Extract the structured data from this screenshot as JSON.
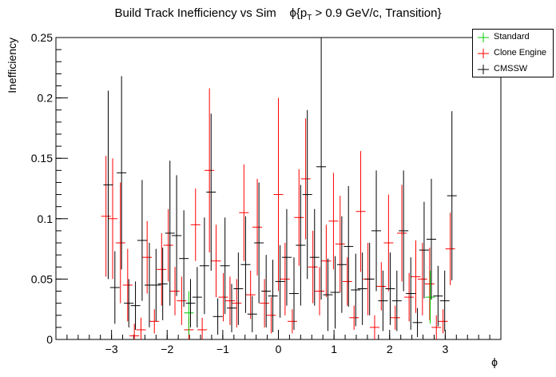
{
  "chart_data": {
    "type": "scatter",
    "title": "Build Track Inefficiency vs Sim    ϕ{p_T > 0.9 GeV/c, Transition}",
    "title_main": "Build Track Inefficiency vs Sim",
    "title_phi": "ϕ{p",
    "title_sub": "T",
    "title_rest": " > 0.9 GeV/c, Transition}",
    "xlabel": "ϕ",
    "ylabel": "Inefficiency",
    "xlim": [
      -4,
      4
    ],
    "ylim": [
      0,
      0.25
    ],
    "x_ticks": [
      -3,
      -2,
      -1,
      0,
      1,
      2,
      3
    ],
    "x_tick_labels": [
      "−3",
      "−2",
      "−1",
      "0",
      "1",
      "2",
      "3"
    ],
    "y_ticks": [
      0,
      0.05,
      0.1,
      0.15,
      0.2,
      0.25
    ],
    "y_tick_labels": [
      "0",
      "0.05",
      "0.1",
      "0.15",
      "0.2",
      "0.25"
    ],
    "grid": false,
    "legend_position": "top-right",
    "series": [
      {
        "name": "Standard",
        "color": "#00cc00",
        "x": [
          -1.61,
          2.73
        ],
        "y": [
          0.022,
          0.035
        ],
        "err": [
          0.018,
          0.022
        ]
      },
      {
        "name": "Clone Engine",
        "color": "#ff0000",
        "x": [
          -3.1,
          -2.98,
          -2.84,
          -2.71,
          -2.59,
          -2.47,
          -2.36,
          -2.23,
          -2.1,
          -1.98,
          -1.86,
          -1.74,
          -1.61,
          -1.49,
          -1.37,
          -1.24,
          -1.12,
          -0.99,
          -0.87,
          -0.75,
          -0.62,
          -0.5,
          -0.38,
          -0.25,
          -0.13,
          0.0,
          0.12,
          0.25,
          0.37,
          0.49,
          0.62,
          0.74,
          0.86,
          0.99,
          1.11,
          1.24,
          1.36,
          1.48,
          1.61,
          1.73,
          1.85,
          1.98,
          2.1,
          2.22,
          2.35,
          2.47,
          2.59,
          2.72,
          2.84,
          2.96,
          3.09
        ],
        "y": [
          0.102,
          0.1,
          0.08,
          0.045,
          0.003,
          0.008,
          0.068,
          0.015,
          0.058,
          0.078,
          0.04,
          0.032,
          0.008,
          0.095,
          0.008,
          0.14,
          0.065,
          0.035,
          0.032,
          0.03,
          0.105,
          0.037,
          0.093,
          0.03,
          0.02,
          0.12,
          0.05,
          0.015,
          0.101,
          0.133,
          0.06,
          0.04,
          0.065,
          0.098,
          0.079,
          0.048,
          0.018,
          0.106,
          0.05,
          0.01,
          0.044,
          0.08,
          0.018,
          0.088,
          0.035,
          0.052,
          0.05,
          0.046,
          0.01,
          0.015,
          0.075
        ],
        "err": [
          0.05,
          0.05,
          0.05,
          0.03,
          0.01,
          0.01,
          0.03,
          0.01,
          0.03,
          0.03,
          0.02,
          0.02,
          0.01,
          0.03,
          0.01,
          0.068,
          0.03,
          0.02,
          0.02,
          0.02,
          0.04,
          0.02,
          0.04,
          0.02,
          0.015,
          0.08,
          0.03,
          0.01,
          0.04,
          0.05,
          0.03,
          0.02,
          0.03,
          0.04,
          0.04,
          0.02,
          0.01,
          0.05,
          0.03,
          0.01,
          0.02,
          0.04,
          0.01,
          0.04,
          0.02,
          0.03,
          0.03,
          0.03,
          0.01,
          0.01,
          0.03
        ]
      },
      {
        "name": "CMSSW",
        "color": "#000000",
        "x": [
          -3.06,
          -2.94,
          -2.82,
          -2.69,
          -2.57,
          -2.45,
          -2.32,
          -2.2,
          -2.08,
          -1.95,
          -1.83,
          -1.7,
          -1.58,
          -1.46,
          -1.33,
          -1.21,
          -1.09,
          -0.96,
          -0.84,
          -0.72,
          -0.59,
          -0.47,
          -0.35,
          -0.22,
          -0.1,
          0.03,
          0.15,
          0.28,
          0.4,
          0.52,
          0.65,
          0.77,
          0.89,
          1.02,
          1.14,
          1.26,
          1.39,
          1.51,
          1.64,
          1.76,
          1.88,
          2.01,
          2.13,
          2.25,
          2.38,
          2.5,
          2.62,
          2.75,
          2.87,
          2.99,
          3.12
        ],
        "y": [
          0.128,
          0.043,
          0.138,
          0.03,
          0.028,
          0.082,
          0.045,
          0.045,
          0.046,
          0.088,
          0.086,
          0.067,
          0.03,
          0.035,
          0.061,
          0.122,
          0.019,
          0.061,
          0.026,
          0.042,
          0.062,
          0.021,
          0.08,
          0.04,
          0.036,
          0.048,
          0.068,
          0.038,
          0.078,
          0.12,
          0.068,
          0.143,
          0.037,
          0.039,
          0.062,
          0.077,
          0.041,
          0.042,
          0.05,
          0.09,
          0.032,
          0.042,
          0.032,
          0.09,
          0.038,
          0.014,
          0.074,
          0.083,
          0.036,
          0.032,
          0.119
        ],
        "err": [
          0.078,
          0.03,
          0.08,
          0.02,
          0.02,
          0.05,
          0.035,
          0.03,
          0.03,
          0.06,
          0.05,
          0.04,
          0.02,
          0.025,
          0.04,
          0.065,
          0.015,
          0.04,
          0.02,
          0.03,
          0.04,
          0.015,
          0.05,
          0.03,
          0.03,
          0.03,
          0.04,
          0.03,
          0.05,
          0.07,
          0.04,
          0.11,
          0.03,
          0.03,
          0.04,
          0.05,
          0.03,
          0.03,
          0.03,
          0.05,
          0.025,
          0.03,
          0.025,
          0.05,
          0.03,
          0.012,
          0.04,
          0.05,
          0.025,
          0.025,
          0.07
        ]
      }
    ]
  }
}
